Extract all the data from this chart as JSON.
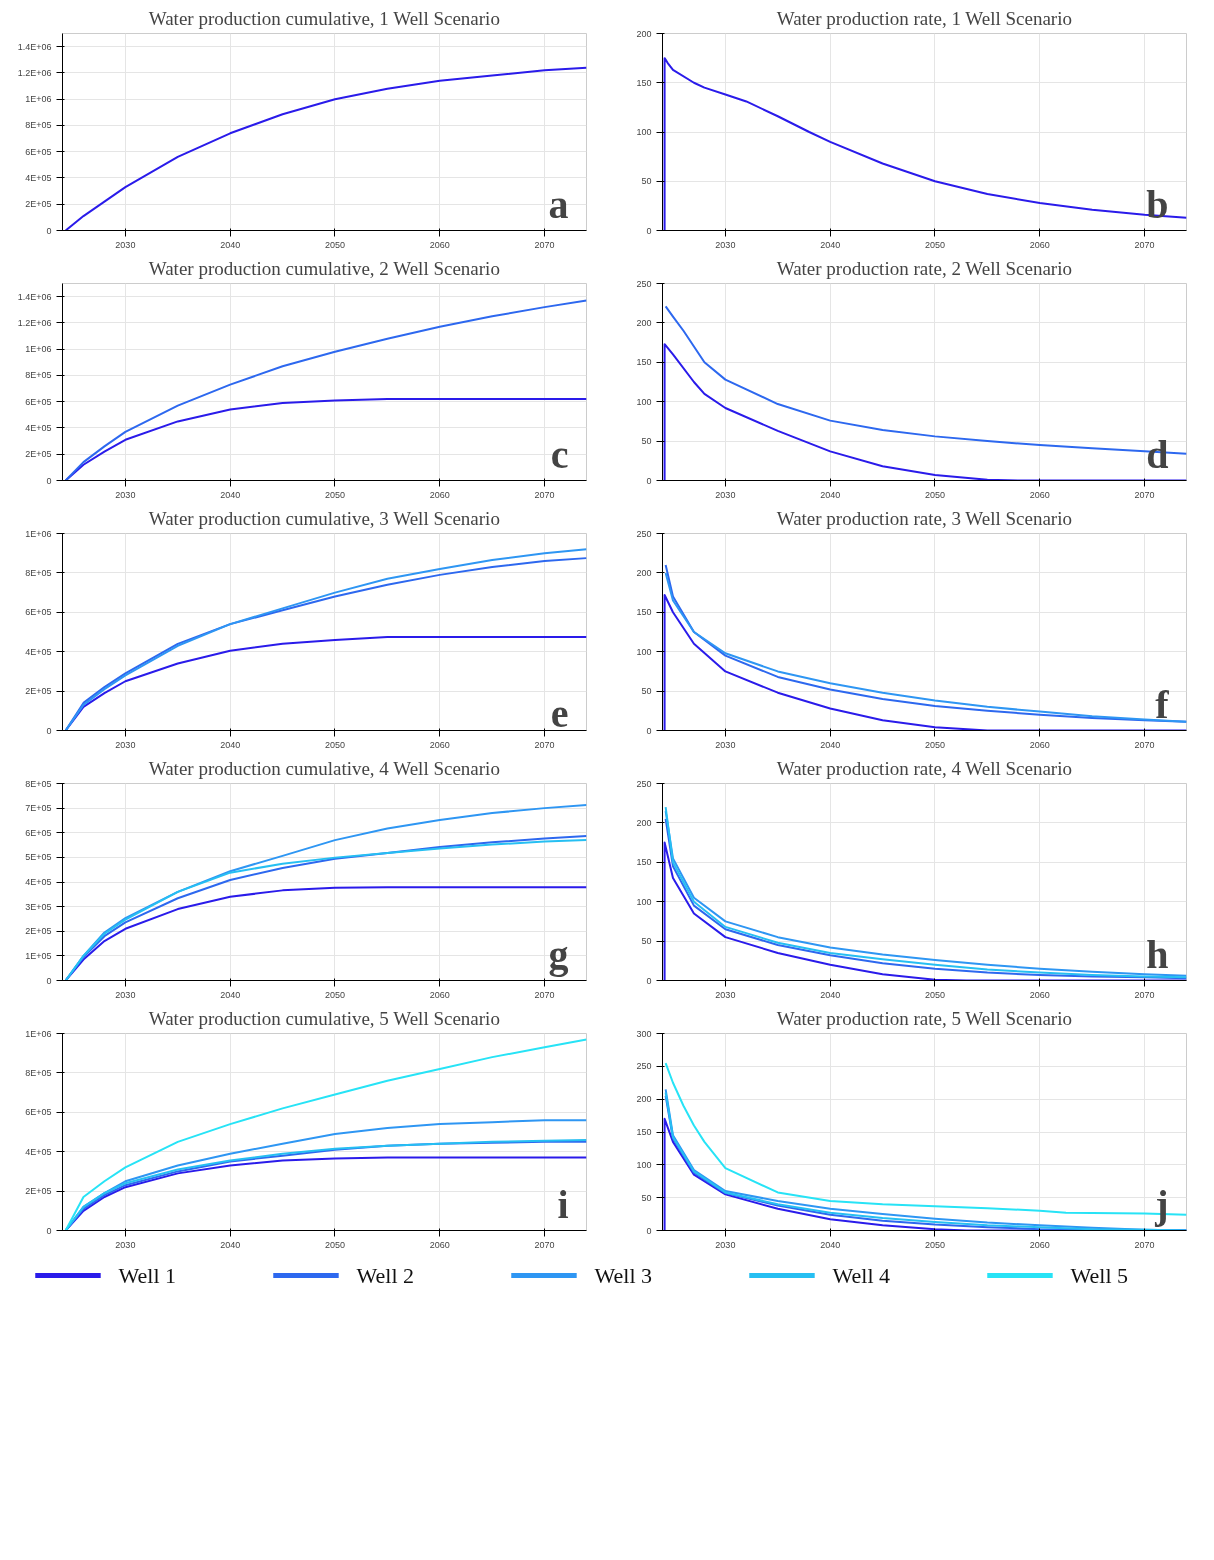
{
  "chart_data": [
    {
      "type": "line",
      "title": "Water production cumulative, 1 Well Scenario",
      "annotations": [
        "a"
      ],
      "grid": true,
      "xlim": [
        2024,
        2074
      ],
      "xticks": [
        2030,
        2040,
        2050,
        2060,
        2070
      ],
      "ylim": [
        0,
        1500000
      ],
      "yticks": [
        0,
        {
          "value": 200000,
          "label": "2E+05"
        },
        {
          "value": 400000,
          "label": "4E+05"
        },
        {
          "value": 600000,
          "label": "6E+05"
        },
        {
          "value": 800000,
          "label": "8E+05"
        },
        {
          "value": 1000000,
          "label": "1E+06"
        },
        {
          "value": 1200000,
          "label": "1.2E+06"
        },
        {
          "value": 1400000,
          "label": "1.4E+06"
        }
      ],
      "x": [
        2024.3,
        2026,
        2028,
        2030,
        2035,
        2040,
        2045,
        2050,
        2055,
        2060,
        2065,
        2070,
        2074
      ],
      "series": [
        {
          "color": "#2a1bea",
          "values": [
            0,
            110000,
            220000,
            330000,
            560000,
            740000,
            885000,
            1000000,
            1080000,
            1140000,
            1180000,
            1220000,
            1240000
          ]
        }
      ]
    },
    {
      "type": "line",
      "title": "Water production rate, 1 Well Scenario",
      "annotations": [
        "b"
      ],
      "grid": true,
      "xlim": [
        2024,
        2074
      ],
      "xticks": [
        2030,
        2040,
        2050,
        2060,
        2070
      ],
      "ylim": [
        0,
        200
      ],
      "yticks": [
        0,
        50,
        100,
        150,
        200
      ],
      "series": [
        {
          "color": "#2a1bea",
          "x": [
            2024.2,
            2024.2,
            2024.5,
            2025,
            2027,
            2028,
            2030,
            2032,
            2035,
            2038,
            2040,
            2045,
            2050,
            2055,
            2060,
            2065,
            2070,
            2074
          ],
          "values": [
            0,
            175,
            170,
            163,
            150,
            145,
            138,
            131,
            116,
            100,
            90,
            68,
            50,
            37,
            28,
            21,
            16,
            13
          ]
        }
      ]
    },
    {
      "type": "line",
      "title": "Water production cumulative, 2 Well Scenario",
      "annotations": [
        "c"
      ],
      "grid": true,
      "xlim": [
        2024,
        2074
      ],
      "xticks": [
        2030,
        2040,
        2050,
        2060,
        2070
      ],
      "ylim": [
        0,
        1500000
      ],
      "yticks": [
        0,
        {
          "value": 200000,
          "label": "2E+05"
        },
        {
          "value": 400000,
          "label": "4E+05"
        },
        {
          "value": 600000,
          "label": "6E+05"
        },
        {
          "value": 800000,
          "label": "8E+05"
        },
        {
          "value": 1000000,
          "label": "1E+06"
        },
        {
          "value": 1200000,
          "label": "1.2E+06"
        },
        {
          "value": 1400000,
          "label": "1.4E+06"
        }
      ],
      "x": [
        2024.3,
        2026,
        2028,
        2030,
        2035,
        2040,
        2045,
        2050,
        2055,
        2060,
        2065,
        2070,
        2074
      ],
      "series": [
        {
          "color": "#2a1bea",
          "values": [
            0,
            120000,
            220000,
            310000,
            450000,
            540000,
            590000,
            610000,
            620000,
            620000,
            620000,
            620000,
            620000
          ]
        },
        {
          "color": "#2d68ef",
          "values": [
            0,
            140000,
            260000,
            370000,
            570000,
            730000,
            870000,
            980000,
            1080000,
            1170000,
            1250000,
            1320000,
            1370000
          ]
        }
      ]
    },
    {
      "type": "line",
      "title": "Water production rate, 2 Well Scenario",
      "annotations": [
        "d"
      ],
      "grid": true,
      "xlim": [
        2024,
        2074
      ],
      "xticks": [
        2030,
        2040,
        2050,
        2060,
        2070
      ],
      "ylim": [
        0,
        250
      ],
      "yticks": [
        0,
        50,
        100,
        150,
        200,
        250
      ],
      "series": [
        {
          "color": "#2a1bea",
          "x": [
            2024.2,
            2024.2,
            2025,
            2027,
            2028,
            2030,
            2035,
            2040,
            2045,
            2050,
            2055,
            2058,
            2074
          ],
          "values": [
            0,
            173,
            160,
            125,
            110,
            92,
            63,
            37,
            18,
            7,
            1,
            0,
            0
          ]
        },
        {
          "color": "#2d68ef",
          "x": [
            2024.3,
            2025,
            2026,
            2028,
            2030,
            2035,
            2040,
            2045,
            2050,
            2055,
            2060,
            2065,
            2070,
            2074
          ],
          "values": [
            221,
            208,
            190,
            150,
            128,
            97,
            76,
            64,
            56,
            50,
            45,
            41,
            37,
            34
          ]
        }
      ]
    },
    {
      "type": "line",
      "title": "Water production cumulative, 3 Well Scenario",
      "annotations": [
        "e"
      ],
      "grid": true,
      "xlim": [
        2024,
        2074
      ],
      "xticks": [
        2030,
        2040,
        2050,
        2060,
        2070
      ],
      "ylim": [
        0,
        1000000
      ],
      "yticks": [
        0,
        {
          "value": 200000,
          "label": "2E+05"
        },
        {
          "value": 400000,
          "label": "4E+05"
        },
        {
          "value": 600000,
          "label": "6E+05"
        },
        {
          "value": 800000,
          "label": "8E+05"
        },
        {
          "value": 1000000,
          "label": "1E+06"
        }
      ],
      "x": [
        2024.3,
        2026,
        2028,
        2030,
        2035,
        2040,
        2045,
        2050,
        2055,
        2060,
        2065,
        2070,
        2074
      ],
      "series": [
        {
          "color": "#2a1bea",
          "values": [
            0,
            120000,
            190000,
            250000,
            340000,
            405000,
            440000,
            460000,
            475000,
            475000,
            475000,
            475000,
            475000
          ]
        },
        {
          "color": "#2d68ef",
          "values": [
            0,
            140000,
            220000,
            290000,
            440000,
            540000,
            610000,
            680000,
            740000,
            790000,
            830000,
            860000,
            875000
          ]
        },
        {
          "color": "#2e96f3",
          "values": [
            0,
            130000,
            210000,
            280000,
            430000,
            540000,
            620000,
            700000,
            770000,
            820000,
            865000,
            900000,
            920000
          ]
        }
      ]
    },
    {
      "type": "line",
      "title": "Water production rate, 3 Well Scenario",
      "annotations": [
        "f"
      ],
      "grid": true,
      "xlim": [
        2024,
        2074
      ],
      "xticks": [
        2030,
        2040,
        2050,
        2060,
        2070
      ],
      "ylim": [
        0,
        250
      ],
      "yticks": [
        0,
        50,
        100,
        150,
        200,
        250
      ],
      "series": [
        {
          "color": "#2a1bea",
          "x": [
            2024.2,
            2024.2,
            2025,
            2027,
            2030,
            2035,
            2040,
            2045,
            2050,
            2055,
            2074
          ],
          "values": [
            0,
            172,
            150,
            110,
            75,
            48,
            28,
            13,
            4,
            0,
            0
          ]
        },
        {
          "color": "#2d68ef",
          "x": [
            2024.3,
            2025,
            2027,
            2030,
            2035,
            2040,
            2045,
            2050,
            2055,
            2060,
            2065,
            2070,
            2074
          ],
          "values": [
            210,
            170,
            125,
            95,
            68,
            52,
            40,
            31,
            25,
            20,
            16,
            13,
            11
          ]
        },
        {
          "color": "#2e96f3",
          "x": [
            2024.3,
            2025,
            2027,
            2030,
            2035,
            2040,
            2045,
            2050,
            2055,
            2060,
            2065,
            2070,
            2074
          ],
          "values": [
            200,
            165,
            125,
            98,
            75,
            60,
            48,
            38,
            30,
            24,
            18,
            14,
            11
          ]
        }
      ]
    },
    {
      "type": "line",
      "title": "Water production cumulative, 4 Well Scenario",
      "annotations": [
        "g"
      ],
      "grid": true,
      "xlim": [
        2024,
        2074
      ],
      "xticks": [
        2030,
        2040,
        2050,
        2060,
        2070
      ],
      "ylim": [
        0,
        800000
      ],
      "yticks": [
        0,
        {
          "value": 100000,
          "label": "1E+05"
        },
        {
          "value": 200000,
          "label": "2E+05"
        },
        {
          "value": 300000,
          "label": "3E+05"
        },
        {
          "value": 400000,
          "label": "4E+05"
        },
        {
          "value": 500000,
          "label": "5E+05"
        },
        {
          "value": 600000,
          "label": "6E+05"
        },
        {
          "value": 700000,
          "label": "7E+05"
        },
        {
          "value": 800000,
          "label": "8E+05"
        }
      ],
      "x": [
        2024.3,
        2026,
        2028,
        2030,
        2035,
        2040,
        2045,
        2050,
        2055,
        2060,
        2065,
        2070,
        2074
      ],
      "series": [
        {
          "color": "#2a1bea",
          "values": [
            0,
            85000,
            160000,
            210000,
            290000,
            340000,
            366000,
            377000,
            379000,
            379000,
            379000,
            379000,
            379000
          ]
        },
        {
          "color": "#2d68ef",
          "values": [
            0,
            95000,
            180000,
            236000,
            334000,
            408000,
            457000,
            494000,
            518000,
            542000,
            561000,
            577000,
            587000
          ]
        },
        {
          "color": "#2e96f3",
          "values": [
            0,
            100000,
            195000,
            253000,
            360000,
            444000,
            506000,
            570000,
            617000,
            652000,
            680000,
            700000,
            713000
          ]
        },
        {
          "color": "#26bff2",
          "values": [
            0,
            100000,
            190000,
            247000,
            360000,
            438000,
            474000,
            499000,
            518000,
            536000,
            552000,
            564000,
            571000
          ]
        }
      ]
    },
    {
      "type": "line",
      "title": "Water production rate, 4 Well Scenario",
      "annotations": [
        "h"
      ],
      "grid": true,
      "xlim": [
        2024,
        2074
      ],
      "xticks": [
        2030,
        2040,
        2050,
        2060,
        2070
      ],
      "ylim": [
        0,
        250
      ],
      "yticks": [
        0,
        50,
        100,
        150,
        200,
        250
      ],
      "series": [
        {
          "color": "#2a1bea",
          "x": [
            2024.2,
            2024.2,
            2025,
            2027,
            2030,
            2035,
            2040,
            2045,
            2050,
            2053,
            2074
          ],
          "values": [
            0,
            175,
            130,
            85,
            55,
            35,
            20,
            8,
            1,
            0,
            0
          ]
        },
        {
          "color": "#2d68ef",
          "x": [
            2024.3,
            2025,
            2027,
            2030,
            2035,
            2040,
            2045,
            2050,
            2055,
            2060,
            2065,
            2070,
            2074
          ],
          "values": [
            205,
            145,
            95,
            65,
            45,
            32,
            22,
            15,
            10,
            7,
            5,
            4,
            3
          ]
        },
        {
          "color": "#2e96f3",
          "x": [
            2024.3,
            2025,
            2027,
            2030,
            2035,
            2040,
            2045,
            2050,
            2055,
            2060,
            2065,
            2070,
            2074
          ],
          "values": [
            215,
            155,
            105,
            75,
            55,
            42,
            33,
            26,
            20,
            15,
            11,
            8,
            6
          ]
        },
        {
          "color": "#26bff2",
          "x": [
            2024.3,
            2025,
            2027,
            2030,
            2035,
            2040,
            2045,
            2050,
            2055,
            2060,
            2065,
            2070,
            2074
          ],
          "values": [
            220,
            150,
            100,
            68,
            48,
            35,
            27,
            20,
            14,
            10,
            7,
            5,
            4
          ]
        }
      ]
    },
    {
      "type": "line",
      "title": "Water production cumulative, 5 Well Scenario",
      "annotations": [
        "i"
      ],
      "grid": true,
      "legend": "bottom",
      "xlim": [
        2024,
        2074
      ],
      "xticks": [
        2030,
        2040,
        2050,
        2060,
        2070
      ],
      "ylim": [
        0,
        1000000
      ],
      "yticks": [
        0,
        {
          "value": 200000,
          "label": "2E+05"
        },
        {
          "value": 400000,
          "label": "4E+05"
        },
        {
          "value": 600000,
          "label": "6E+05"
        },
        {
          "value": 800000,
          "label": "8E+05"
        },
        {
          "value": 1000000,
          "label": "1E+06"
        }
      ],
      "x": [
        2024.3,
        2026,
        2028,
        2030,
        2035,
        2040,
        2045,
        2050,
        2055,
        2060,
        2065,
        2070,
        2074
      ],
      "series": [
        {
          "name": "Well 1",
          "color": "#2a1bea",
          "values": [
            0,
            100000,
            170000,
            220000,
            290000,
            330000,
            355000,
            365000,
            370000,
            370000,
            370000,
            370000,
            370000
          ]
        },
        {
          "name": "Well 2",
          "color": "#2d68ef",
          "values": [
            0,
            110000,
            180000,
            230000,
            300000,
            350000,
            380000,
            410000,
            430000,
            440000,
            445000,
            450000,
            450000
          ]
        },
        {
          "name": "Well 3",
          "color": "#2e96f3",
          "values": [
            0,
            120000,
            190000,
            250000,
            330000,
            390000,
            440000,
            490000,
            520000,
            540000,
            550000,
            560000,
            560000
          ]
        },
        {
          "name": "Well 4",
          "color": "#26bff2",
          "values": [
            0,
            120000,
            190000,
            240000,
            310000,
            355000,
            390000,
            415000,
            430000,
            440000,
            450000,
            455000,
            460000
          ]
        },
        {
          "name": "Well 5",
          "color": "#27e3f6",
          "values": [
            0,
            170000,
            250000,
            320000,
            450000,
            540000,
            620000,
            690000,
            760000,
            820000,
            880000,
            930000,
            970000
          ]
        }
      ]
    },
    {
      "type": "line",
      "title": "Water production rate, 5 Well Scenario",
      "annotations": [
        "j"
      ],
      "grid": true,
      "xlim": [
        2024,
        2074
      ],
      "xticks": [
        2030,
        2040,
        2050,
        2060,
        2070
      ],
      "ylim": [
        0,
        300
      ],
      "yticks": [
        0,
        50,
        100,
        150,
        200,
        250,
        300
      ],
      "series": [
        {
          "color": "#2a1bea",
          "x": [
            2024.2,
            2024.2,
            2025,
            2027,
            2030,
            2035,
            2040,
            2045,
            2050,
            2053,
            2074
          ],
          "values": [
            0,
            170,
            135,
            85,
            55,
            33,
            17,
            8,
            2,
            0,
            0
          ]
        },
        {
          "color": "#2d68ef",
          "x": [
            2024.3,
            2025,
            2027,
            2030,
            2035,
            2040,
            2045,
            2050,
            2055,
            2060,
            2065,
            2070,
            2074
          ],
          "values": [
            205,
            140,
            88,
            57,
            38,
            24,
            15,
            9,
            5,
            2,
            1,
            0,
            0
          ]
        },
        {
          "color": "#2e96f3",
          "x": [
            2024.3,
            2025,
            2027,
            2030,
            2035,
            2040,
            2045,
            2050,
            2055,
            2060,
            2065,
            2070,
            2074
          ],
          "values": [
            215,
            145,
            92,
            60,
            45,
            33,
            25,
            18,
            12,
            8,
            4,
            1,
            0
          ]
        },
        {
          "color": "#26bff2",
          "x": [
            2024.3,
            2025,
            2027,
            2030,
            2035,
            2040,
            2045,
            2050,
            2055,
            2060,
            2065,
            2070,
            2074
          ],
          "values": [
            210,
            142,
            90,
            58,
            40,
            27,
            19,
            13,
            8,
            5,
            2,
            1,
            0
          ]
        },
        {
          "color": "#27e3f6",
          "x": [
            2024.3,
            2025,
            2026,
            2027,
            2028,
            2030,
            2035,
            2040,
            2045,
            2050,
            2055,
            2060,
            2062.5,
            2070,
            2074
          ],
          "values": [
            255,
            225,
            190,
            160,
            135,
            95,
            58,
            45,
            40,
            37,
            34,
            30,
            27,
            26,
            24
          ]
        }
      ]
    }
  ]
}
